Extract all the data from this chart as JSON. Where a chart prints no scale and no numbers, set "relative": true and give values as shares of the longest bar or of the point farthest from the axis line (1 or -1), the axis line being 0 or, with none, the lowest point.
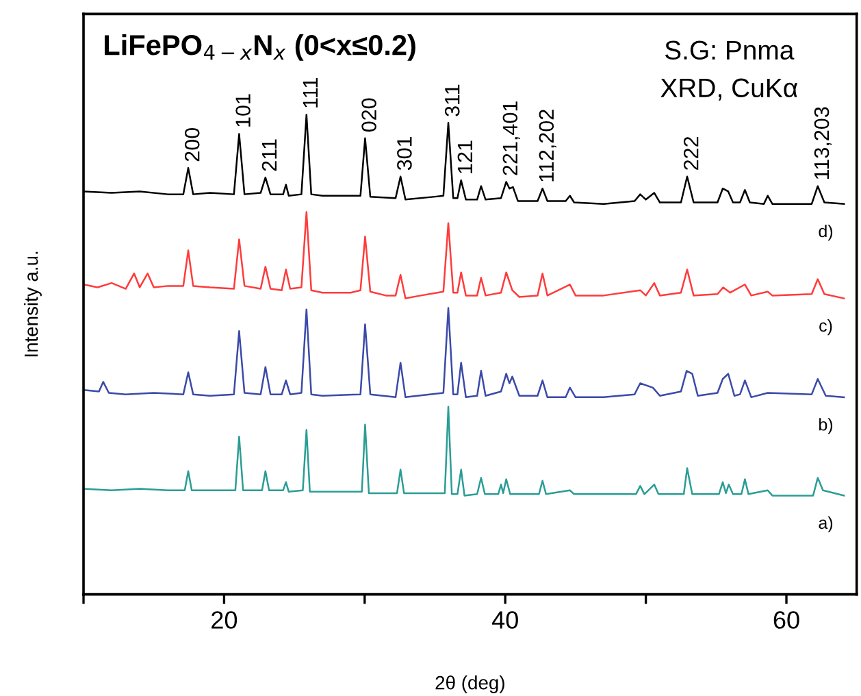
{
  "chart_data": {
    "type": "line",
    "relative": true,
    "title": "LiFePO$_{4−x}$N$_{x}$ (0<x≤0.2)",
    "xlabel": "2θ (deg)",
    "ylabel": "Intensity a.u.",
    "xlim": [
      10,
      65
    ],
    "xticks": [
      {
        "value": 10,
        "label": null
      },
      20,
      {
        "value": 30,
        "label": null
      },
      40,
      {
        "value": 50,
        "label": null
      },
      60
    ],
    "tick_labels": "x",
    "grid": false,
    "marker": "none",
    "line_style": "solid",
    "annotations": [
      {
        "text": "200",
        "x": 17.45,
        "y": 0.889
      },
      {
        "text": "101",
        "x": 21.07,
        "y": 0.96
      },
      {
        "text": "211",
        "x": 22.94,
        "y": 0.869
      },
      {
        "text": "111",
        "x": 25.86,
        "y": 1.0
      },
      {
        "text": "020",
        "x": 30.03,
        "y": 0.951
      },
      {
        "text": "301",
        "x": 32.55,
        "y": 0.871
      },
      {
        "text": "311",
        "x": 35.95,
        "y": 0.983
      },
      {
        "text": "121",
        "x": 36.86,
        "y": 0.863
      },
      {
        "text": "221,401",
        "x": 40.07,
        "y": 0.86
      },
      {
        "text": "112,202",
        "x": 42.65,
        "y": 0.846
      },
      {
        "text": "222",
        "x": 52.94,
        "y": 0.871
      },
      {
        "text": "113,203",
        "x": 62.23,
        "y": 0.851
      },
      "S.G: Pnma",
      "XRD, CuKα"
    ],
    "series": [
      {
        "name": "d)",
        "color": "#000000",
        "x": [
          10,
          12,
          14,
          16,
          17.1,
          17.45,
          17.8,
          19,
          20.7,
          21.07,
          21.45,
          22.6,
          22.94,
          23.3,
          24.2,
          24.4,
          24.6,
          25.5,
          25.86,
          26.2,
          27,
          29,
          29.7,
          30.03,
          30.4,
          32.2,
          32.55,
          32.9,
          35,
          35.6,
          35.95,
          36.3,
          36.6,
          36.86,
          37.2,
          38.0,
          38.28,
          38.6,
          39.7,
          40.07,
          40.3,
          40.55,
          40.9,
          42.3,
          42.65,
          43,
          44.3,
          44.6,
          44.9,
          47,
          49.2,
          49.6,
          50.0,
          50.6,
          51.0,
          52.5,
          52.94,
          53.4,
          55.1,
          55.47,
          55.86,
          56.2,
          56.7,
          57.05,
          57.4,
          58.4,
          58.67,
          59,
          61.8,
          62.23,
          62.7,
          64.1
        ],
        "values": [
          0.84,
          0.837,
          0.84,
          0.834,
          0.834,
          0.889,
          0.834,
          0.837,
          0.834,
          0.96,
          0.834,
          0.837,
          0.869,
          0.834,
          0.834,
          0.854,
          0.831,
          0.834,
          1.0,
          0.834,
          0.831,
          0.831,
          0.831,
          0.951,
          0.829,
          0.826,
          0.871,
          0.823,
          0.829,
          0.831,
          0.983,
          0.826,
          0.826,
          0.863,
          0.823,
          0.823,
          0.851,
          0.823,
          0.826,
          0.86,
          0.846,
          0.849,
          0.82,
          0.82,
          0.846,
          0.82,
          0.82,
          0.831,
          0.817,
          0.814,
          0.82,
          0.834,
          0.823,
          0.837,
          0.817,
          0.817,
          0.871,
          0.817,
          0.817,
          0.846,
          0.84,
          0.817,
          0.817,
          0.843,
          0.817,
          0.814,
          0.831,
          0.814,
          0.814,
          0.851,
          0.817,
          0.814
        ]
      },
      {
        "name": "c)",
        "color": "#ff3b3b",
        "x": [
          10,
          11,
          12,
          13,
          13.6,
          14,
          14.56,
          15,
          16,
          17.1,
          17.45,
          17.8,
          19,
          20.7,
          21.07,
          21.45,
          22.6,
          22.94,
          23.3,
          24.1,
          24.4,
          24.7,
          25.5,
          25.86,
          26.2,
          27,
          29,
          29.7,
          30.03,
          30.4,
          31.5,
          32.2,
          32.55,
          32.9,
          34,
          35.6,
          35.95,
          36.3,
          36.6,
          36.86,
          37.2,
          38,
          38.28,
          38.6,
          39.7,
          40.07,
          40.5,
          41,
          42.3,
          42.65,
          43,
          44.6,
          45,
          47,
          49.6,
          50,
          50.6,
          51,
          52.5,
          52.94,
          53.4,
          55.1,
          55.5,
          56,
          57.05,
          57.5,
          58.67,
          59,
          61.8,
          62.23,
          62.7,
          64.1
        ],
        "values": [
          0.646,
          0.64,
          0.649,
          0.637,
          0.669,
          0.64,
          0.669,
          0.64,
          0.643,
          0.643,
          0.717,
          0.643,
          0.64,
          0.637,
          0.74,
          0.643,
          0.637,
          0.683,
          0.637,
          0.634,
          0.677,
          0.637,
          0.64,
          0.797,
          0.634,
          0.629,
          0.629,
          0.634,
          0.746,
          0.631,
          0.623,
          0.623,
          0.666,
          0.617,
          0.623,
          0.631,
          0.774,
          0.629,
          0.629,
          0.671,
          0.623,
          0.623,
          0.66,
          0.623,
          0.629,
          0.671,
          0.634,
          0.62,
          0.623,
          0.669,
          0.623,
          0.646,
          0.623,
          0.623,
          0.634,
          0.623,
          0.649,
          0.623,
          0.629,
          0.677,
          0.623,
          0.626,
          0.64,
          0.629,
          0.646,
          0.623,
          0.631,
          0.623,
          0.626,
          0.657,
          0.626,
          0.617
        ]
      },
      {
        "name": "b)",
        "color": "#3b4aa8",
        "x": [
          10,
          11.1,
          11.4,
          11.8,
          13,
          15,
          17.1,
          17.45,
          17.8,
          19,
          20.7,
          21.07,
          21.45,
          22.6,
          22.94,
          23.3,
          24.1,
          24.4,
          24.7,
          25.5,
          25.86,
          26.2,
          27,
          29.7,
          30.03,
          30.4,
          32.2,
          32.55,
          32.9,
          35.6,
          35.95,
          36.3,
          36.6,
          36.86,
          37.2,
          38,
          38.28,
          38.6,
          39.7,
          40.07,
          40.3,
          40.5,
          41,
          42.3,
          42.65,
          43,
          44.3,
          44.6,
          45,
          47,
          49.2,
          49.6,
          50.5,
          51,
          52.5,
          52.9,
          53.3,
          53.7,
          55.1,
          55.47,
          55.86,
          56.3,
          56.7,
          57.05,
          57.5,
          58.67,
          61.8,
          62.23,
          62.8,
          64.1
        ],
        "values": [
          0.426,
          0.423,
          0.443,
          0.42,
          0.417,
          0.42,
          0.417,
          0.463,
          0.417,
          0.414,
          0.417,
          0.549,
          0.42,
          0.417,
          0.474,
          0.417,
          0.417,
          0.446,
          0.417,
          0.42,
          0.594,
          0.417,
          0.414,
          0.417,
          0.563,
          0.417,
          0.411,
          0.483,
          0.411,
          0.42,
          0.597,
          0.417,
          0.417,
          0.483,
          0.411,
          0.414,
          0.466,
          0.414,
          0.423,
          0.46,
          0.44,
          0.454,
          0.414,
          0.414,
          0.446,
          0.411,
          0.411,
          0.431,
          0.411,
          0.411,
          0.417,
          0.44,
          0.431,
          0.414,
          0.423,
          0.466,
          0.46,
          0.414,
          0.42,
          0.449,
          0.46,
          0.414,
          0.417,
          0.446,
          0.411,
          0.42,
          0.417,
          0.449,
          0.414,
          0.411
        ]
      },
      {
        "name": "a)",
        "color": "#2a9d95",
        "x": [
          10,
          12,
          14,
          16,
          17.2,
          17.45,
          17.7,
          19,
          20.8,
          21.07,
          21.35,
          22.7,
          22.94,
          23.2,
          24.2,
          24.4,
          24.6,
          25.6,
          25.86,
          26.1,
          29.8,
          30.03,
          30.3,
          32.3,
          32.55,
          32.8,
          35.7,
          35.95,
          36.2,
          36.6,
          36.86,
          37.1,
          38.0,
          38.28,
          38.55,
          39.5,
          39.7,
          39.85,
          40.07,
          40.35,
          42.4,
          42.65,
          42.9,
          44.6,
          44.9,
          49.3,
          49.6,
          49.9,
          50.6,
          50.9,
          52.7,
          52.94,
          53.3,
          55.2,
          55.47,
          55.7,
          55.9,
          56.2,
          56.8,
          57.05,
          57.3,
          58.67,
          59,
          61.9,
          62.23,
          62.6,
          64.1
        ],
        "values": [
          0.22,
          0.217,
          0.22,
          0.217,
          0.217,
          0.257,
          0.217,
          0.217,
          0.217,
          0.329,
          0.217,
          0.217,
          0.257,
          0.217,
          0.217,
          0.234,
          0.214,
          0.217,
          0.343,
          0.214,
          0.214,
          0.354,
          0.211,
          0.211,
          0.26,
          0.211,
          0.211,
          0.391,
          0.209,
          0.209,
          0.26,
          0.206,
          0.209,
          0.243,
          0.209,
          0.209,
          0.229,
          0.211,
          0.24,
          0.209,
          0.209,
          0.237,
          0.209,
          0.217,
          0.209,
          0.209,
          0.226,
          0.209,
          0.229,
          0.209,
          0.209,
          0.263,
          0.209,
          0.209,
          0.234,
          0.211,
          0.229,
          0.209,
          0.209,
          0.24,
          0.209,
          0.217,
          0.206,
          0.206,
          0.243,
          0.217,
          0.206
        ]
      }
    ]
  }
}
